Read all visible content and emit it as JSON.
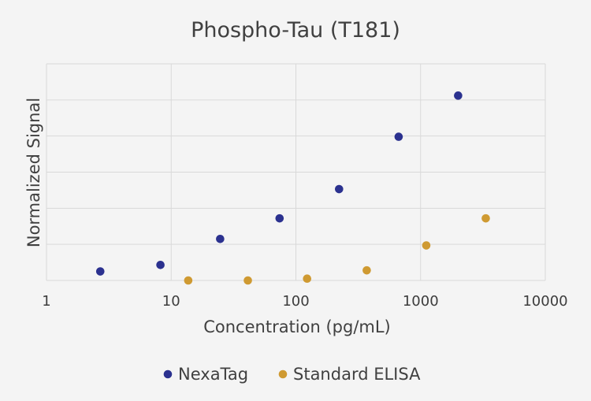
{
  "chart_data": {
    "type": "scatter",
    "title": "Phospho-Tau (T181)",
    "xlabel": "Concentration (pg/mL)",
    "ylabel": "Normalized Signal",
    "xscale": "log",
    "xlim": [
      1,
      10000
    ],
    "ylim": [
      0,
      6
    ],
    "x_ticks": [
      "1",
      "10",
      "100",
      "1000",
      "10000"
    ],
    "grid": true,
    "legend_position": "bottom",
    "series": [
      {
        "name": "NexaTag",
        "color": "#2b318f",
        "x": [
          2.7,
          8.2,
          24.7,
          74,
          222,
          667,
          2000
        ],
        "y": [
          0.25,
          0.43,
          1.15,
          1.72,
          2.53,
          3.98,
          5.12
        ]
      },
      {
        "name": "Standard ELISA",
        "color": "#cf9a32",
        "x": [
          13.7,
          41.2,
          123,
          370,
          1111,
          3333
        ],
        "y": [
          0.0,
          0.0,
          0.05,
          0.28,
          0.97,
          1.72
        ]
      }
    ]
  }
}
